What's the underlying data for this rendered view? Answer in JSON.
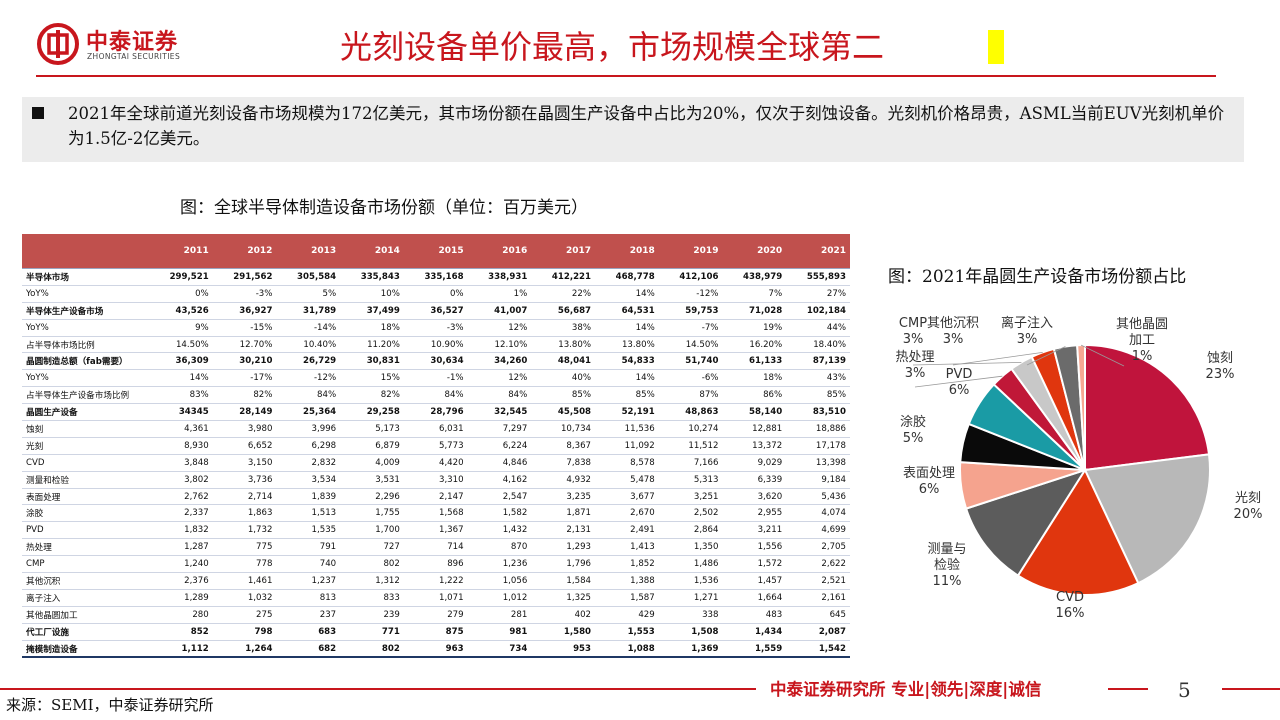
{
  "brand": {
    "name_cn": "中泰证券",
    "name_en": "ZHONGTAI SECURITIES"
  },
  "title": "光刻设备单价最高，市场规模全球第二",
  "summary": "2021年全球前道光刻设备市场规模为172亿美元，其市场份额在晶圆生产设备中占比为20%，仅次于刻蚀设备。光刻机价格昂贵，ASML当前EUV光刻机单价为1.5亿-2亿美元。",
  "table_caption": "图：全球半导体制造设备市场份额（单位：百万美元）",
  "pie_caption": "图：2021年晶圆生产设备市场份额占比",
  "footer": {
    "slogan": "中泰证券研究所 专业|领先|深度|诚信",
    "page": "5",
    "source": "来源：SEMI，中泰证券研究所"
  },
  "colors": {
    "brand_red": "#c8161d",
    "table_header": "#c0504d"
  },
  "chart_data": [
    {
      "type": "table",
      "title": "图：全球半导体制造设备市场份额（单位：百万美元）",
      "columns": [
        "",
        "2011",
        "2012",
        "2013",
        "2014",
        "2015",
        "2016",
        "2017",
        "2018",
        "2019",
        "2020",
        "2021"
      ],
      "rows": [
        {
          "label": "半导体市场",
          "bold": true,
          "values": [
            "299,521",
            "291,562",
            "305,584",
            "335,843",
            "335,168",
            "338,931",
            "412,221",
            "468,778",
            "412,106",
            "438,979",
            "555,893"
          ]
        },
        {
          "label": "YoY%",
          "bold": false,
          "values": [
            "0%",
            "-3%",
            "5%",
            "10%",
            "0%",
            "1%",
            "22%",
            "14%",
            "-12%",
            "7%",
            "27%"
          ]
        },
        {
          "label": "半导体生产设备市场",
          "bold": true,
          "values": [
            "43,526",
            "36,927",
            "31,789",
            "37,499",
            "36,527",
            "41,007",
            "56,687",
            "64,531",
            "59,753",
            "71,028",
            "102,184"
          ]
        },
        {
          "label": "YoY%",
          "bold": false,
          "values": [
            "9%",
            "-15%",
            "-14%",
            "18%",
            "-3%",
            "12%",
            "38%",
            "14%",
            "-7%",
            "19%",
            "44%"
          ]
        },
        {
          "label": "占半导体市场比例",
          "bold": false,
          "values": [
            "14.50%",
            "12.70%",
            "10.40%",
            "11.20%",
            "10.90%",
            "12.10%",
            "13.80%",
            "13.80%",
            "14.50%",
            "16.20%",
            "18.40%"
          ]
        },
        {
          "label": "晶圆制造总额（fab需要）",
          "bold": true,
          "values": [
            "36,309",
            "30,210",
            "26,729",
            "30,831",
            "30,634",
            "34,260",
            "48,041",
            "54,833",
            "51,740",
            "61,133",
            "87,139"
          ]
        },
        {
          "label": "YoY%",
          "bold": false,
          "values": [
            "14%",
            "-17%",
            "-12%",
            "15%",
            "-1%",
            "12%",
            "40%",
            "14%",
            "-6%",
            "18%",
            "43%"
          ]
        },
        {
          "label": "占半导体生产设备市场比例",
          "bold": false,
          "values": [
            "83%",
            "82%",
            "84%",
            "82%",
            "84%",
            "84%",
            "85%",
            "85%",
            "87%",
            "86%",
            "85%"
          ]
        },
        {
          "label": "晶圆生产设备",
          "bold": true,
          "values": [
            "34345",
            "28,149",
            "25,364",
            "29,258",
            "28,796",
            "32,545",
            "45,508",
            "52,191",
            "48,863",
            "58,140",
            "83,510"
          ]
        },
        {
          "label": "蚀刻",
          "bold": false,
          "values": [
            "4,361",
            "3,980",
            "3,996",
            "5,173",
            "6,031",
            "7,297",
            "10,734",
            "11,536",
            "10,274",
            "12,881",
            "18,886"
          ]
        },
        {
          "label": "光刻",
          "bold": false,
          "values": [
            "8,930",
            "6,652",
            "6,298",
            "6,879",
            "5,773",
            "6,224",
            "8,367",
            "11,092",
            "11,512",
            "13,372",
            "17,178"
          ]
        },
        {
          "label": "CVD",
          "bold": false,
          "values": [
            "3,848",
            "3,150",
            "2,832",
            "4,009",
            "4,420",
            "4,846",
            "7,838",
            "8,578",
            "7,166",
            "9,029",
            "13,398"
          ]
        },
        {
          "label": "测量和检验",
          "bold": false,
          "values": [
            "3,802",
            "3,736",
            "3,534",
            "3,531",
            "3,310",
            "4,162",
            "4,932",
            "5,478",
            "5,313",
            "6,339",
            "9,184"
          ]
        },
        {
          "label": "表面处理",
          "bold": false,
          "values": [
            "2,762",
            "2,714",
            "1,839",
            "2,296",
            "2,147",
            "2,547",
            "3,235",
            "3,677",
            "3,251",
            "3,620",
            "5,436"
          ]
        },
        {
          "label": "涂胶",
          "bold": false,
          "values": [
            "2,337",
            "1,863",
            "1,513",
            "1,755",
            "1,568",
            "1,582",
            "1,871",
            "2,670",
            "2,502",
            "2,955",
            "4,074"
          ]
        },
        {
          "label": "PVD",
          "bold": false,
          "values": [
            "1,832",
            "1,732",
            "1,535",
            "1,700",
            "1,367",
            "1,432",
            "2,131",
            "2,491",
            "2,864",
            "3,211",
            "4,699"
          ]
        },
        {
          "label": "热处理",
          "bold": false,
          "values": [
            "1,287",
            "775",
            "791",
            "727",
            "714",
            "870",
            "1,293",
            "1,413",
            "1,350",
            "1,556",
            "2,705"
          ]
        },
        {
          "label": "CMP",
          "bold": false,
          "values": [
            "1,240",
            "778",
            "740",
            "802",
            "896",
            "1,236",
            "1,796",
            "1,852",
            "1,486",
            "1,572",
            "2,622"
          ]
        },
        {
          "label": "其他沉积",
          "bold": false,
          "values": [
            "2,376",
            "1,461",
            "1,237",
            "1,312",
            "1,222",
            "1,056",
            "1,584",
            "1,388",
            "1,536",
            "1,457",
            "2,521"
          ]
        },
        {
          "label": "离子注入",
          "bold": false,
          "values": [
            "1,289",
            "1,032",
            "813",
            "833",
            "1,071",
            "1,012",
            "1,325",
            "1,587",
            "1,271",
            "1,664",
            "2,161"
          ]
        },
        {
          "label": "其他晶圆加工",
          "bold": false,
          "values": [
            "280",
            "275",
            "237",
            "239",
            "279",
            "281",
            "402",
            "429",
            "338",
            "483",
            "645"
          ]
        },
        {
          "label": "代工厂设施",
          "bold": true,
          "values": [
            "852",
            "798",
            "683",
            "771",
            "875",
            "981",
            "1,580",
            "1,553",
            "1,508",
            "1,434",
            "2,087"
          ]
        },
        {
          "label": "掩模制造设备",
          "bold": true,
          "values": [
            "1,112",
            "1,264",
            "682",
            "802",
            "963",
            "734",
            "953",
            "1,088",
            "1,369",
            "1,559",
            "1,542"
          ]
        }
      ]
    },
    {
      "type": "pie",
      "title": "图：2021年晶圆生产设备市场份额占比",
      "slices": [
        {
          "label": "蚀刻",
          "value": 23,
          "display": "23%",
          "color": "#c0143c"
        },
        {
          "label": "光刻",
          "value": 20,
          "display": "20%",
          "color": "#b8b8b8"
        },
        {
          "label": "CVD",
          "value": 16,
          "display": "16%",
          "color": "#e0360e"
        },
        {
          "label": "测量与检验",
          "value": 11,
          "display": "11%",
          "color": "#5c5c5c"
        },
        {
          "label": "表面处理",
          "value": 6,
          "display": "6%",
          "color": "#f5a38e"
        },
        {
          "label": "涂胶",
          "value": 5,
          "display": "5%",
          "color": "#0a0a0a"
        },
        {
          "label": "PVD",
          "value": 6,
          "display": "6%",
          "color": "#1a9ba5"
        },
        {
          "label": "热处理",
          "value": 3,
          "display": "3%",
          "color": "#c01838"
        },
        {
          "label": "CMP",
          "value": 3,
          "display": "3%",
          "color": "#c8c8c8"
        },
        {
          "label": "其他沉积",
          "value": 3,
          "display": "3%",
          "color": "#e0360e"
        },
        {
          "label": "离子注入",
          "value": 3,
          "display": "3%",
          "color": "#6b6b6b"
        },
        {
          "label": "其他晶圆加工",
          "value": 1,
          "display": "1%",
          "color": "#f6a893"
        }
      ]
    }
  ]
}
